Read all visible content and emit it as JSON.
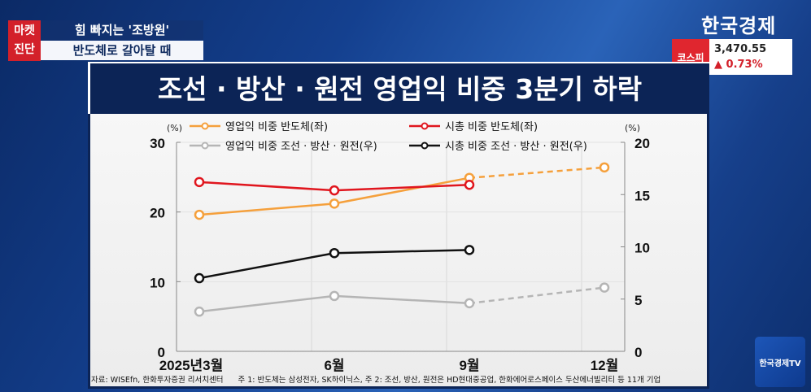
{
  "overlay": {
    "tag_line1": "마켓",
    "tag_line2": "진단",
    "headline1": "힘 빠지는 '조방원'",
    "headline2": "반도체로 갈아탈 때",
    "logo": "한국경제",
    "kospi_label": "코스피",
    "kospi_value": "3,470.55",
    "kospi_change": "▲ 0.73%",
    "tv_logo": "한국경제TV"
  },
  "title": "조선 · 방산 · 원전 영업익 비중 3분기 하락",
  "source": {
    "left": "자료: WISEfn, 한화투자증권 리서치센터",
    "right": "주 1: 반도체는 삼성전자, SK하이닉스, 주 2: 조선, 방산, 원전은 HD현대중공업, 한화에어로스페이스 두산에너빌리티 등 11개 기업"
  },
  "colors": {
    "orange": "#f5a03c",
    "red": "#e0161e",
    "gray": "#b5b5b5",
    "black": "#111111",
    "kospi_red": "#e0262f",
    "navy": "#0c2456"
  },
  "chart_data": {
    "type": "line",
    "categories": [
      "2025년3월",
      "6월",
      "9월",
      "12월"
    ],
    "y_left": {
      "unit": "(%)",
      "range": [
        0,
        30
      ],
      "ticks": [
        "0",
        "10",
        "20",
        "30"
      ]
    },
    "y_right": {
      "unit": "(%)",
      "range": [
        0,
        20
      ],
      "ticks": [
        "0",
        "5",
        "10",
        "15",
        "20"
      ]
    },
    "grid": true,
    "legend_placement": "top",
    "series": [
      {
        "name": "영업익 비중 반도체(좌)",
        "axis": "left",
        "color": "#f5a03c",
        "values": [
          19.6,
          21.2,
          24.9,
          26.4
        ],
        "dashed_from_index": 2
      },
      {
        "name": "시총 비중 반도체(좌)",
        "axis": "left",
        "color": "#e0161e",
        "values": [
          24.3,
          23.1,
          23.9,
          null
        ]
      },
      {
        "name": "영업익 비중 조선 · 방산 · 원전(우)",
        "axis": "right",
        "color": "#b5b5b5",
        "values": [
          3.8,
          5.3,
          4.6,
          6.1
        ],
        "dashed_from_index": 2
      },
      {
        "name": "시총 비중 조선 · 방산 · 원전(우)",
        "axis": "right",
        "color": "#111111",
        "values": [
          7.0,
          9.4,
          9.7,
          null
        ]
      }
    ]
  }
}
